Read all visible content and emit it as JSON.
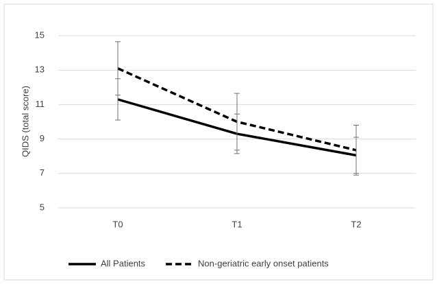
{
  "chart_data": {
    "type": "line",
    "y_label": "QIDS (total score)",
    "categories": [
      "T0",
      "T1",
      "T2"
    ],
    "series": [
      {
        "name": "All Patients",
        "color": "#000000",
        "line_style": "solid",
        "values": [
          11.3,
          9.3,
          8.05
        ],
        "errors": [
          1.2,
          1.15,
          1.05
        ]
      },
      {
        "name": "Non-geriatric early onset patients",
        "color": "#000000",
        "line_style": "dashed",
        "values": [
          13.1,
          10.0,
          8.35
        ],
        "errors": [
          1.55,
          1.65,
          1.45
        ]
      }
    ],
    "ylim": [
      5,
      15
    ],
    "yticks": [
      5,
      7,
      9,
      11,
      13,
      15
    ],
    "grid": true,
    "legend": "bottom"
  }
}
